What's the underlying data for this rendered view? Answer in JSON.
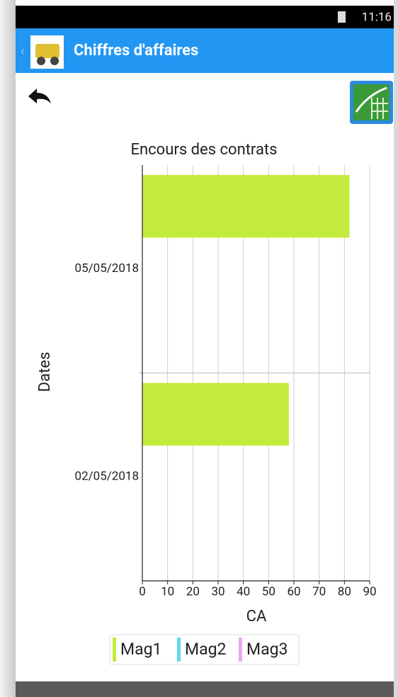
{
  "status_bar": {
    "time": "11:16"
  },
  "app_bar": {
    "title": "Chiffres d'affaires"
  },
  "chart_data": {
    "type": "hbar",
    "title": "Encours des contrats",
    "xlabel": "CA",
    "ylabel": "Dates",
    "categories": [
      "05/05/2018",
      "02/05/2018"
    ],
    "series": [
      {
        "name": "Mag1",
        "color": "#c3eb3c",
        "values": [
          82,
          58
        ]
      },
      {
        "name": "Mag2",
        "color": "#5fd8ee",
        "values": [
          0,
          0
        ]
      },
      {
        "name": "Mag3",
        "color": "#eaa8f2",
        "values": [
          0,
          0
        ]
      }
    ],
    "xlim": [
      0,
      90
    ],
    "xticks": [
      0,
      10,
      20,
      30,
      40,
      50,
      60,
      70,
      80,
      90
    ],
    "grid": true
  }
}
